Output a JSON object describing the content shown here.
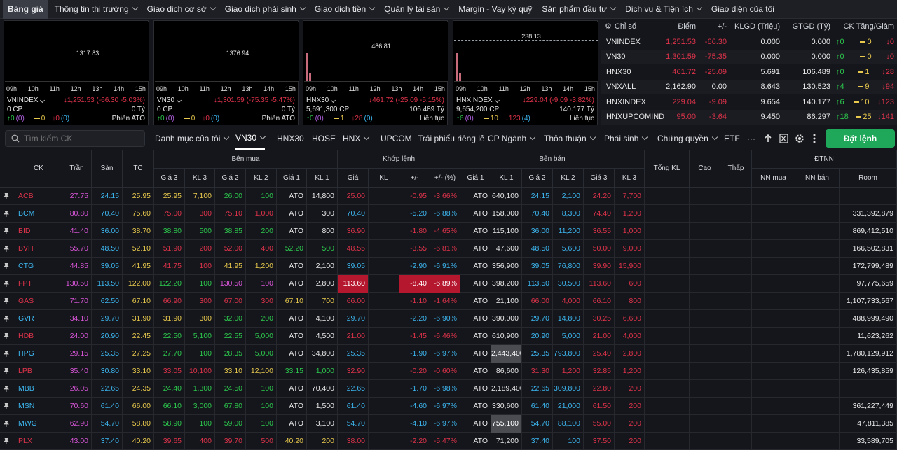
{
  "nav": [
    {
      "label": "Bảng giá",
      "chev": false,
      "active": true
    },
    {
      "label": "Thông tin thị trường",
      "chev": true
    },
    {
      "label": "Giao dịch cơ sở",
      "chev": true
    },
    {
      "label": "Giao dịch phái sinh",
      "chev": true
    },
    {
      "label": "Giao dịch tiền",
      "chev": true
    },
    {
      "label": "Quản lý tài sản",
      "chev": true
    },
    {
      "label": "Margin - Vay ký quỹ",
      "chev": false
    },
    {
      "label": "Sản phẩm đầu tư",
      "chev": true
    },
    {
      "label": "Dịch vụ & Tiện ích",
      "chev": true
    },
    {
      "label": "Giao diện của tôi",
      "chev": false
    }
  ],
  "hours": [
    "09h",
    "10h",
    "11h",
    "12h",
    "13h",
    "14h",
    "15h"
  ],
  "mini_charts": [
    {
      "ref": "1317.83",
      "name": "VNINDEX",
      "chg": "↓1,251.53 (-66.30 -5.03%)",
      "vol": "0 CP",
      "val": "0 Tỷ",
      "up": "↑0",
      "up_paren": "(0)",
      "ref_count": "0",
      "down": "↓0",
      "down_paren": "(0)",
      "session": "Phiên ATO"
    },
    {
      "ref": "1376.94",
      "name": "VN30",
      "chg": "↓1,301.59 (-75.35 -5.47%)",
      "vol": "0 CP",
      "val": "0 Tỷ",
      "up": "↑0",
      "up_paren": "(0)",
      "ref_count": "0",
      "down": "↓0",
      "down_paren": "(0)",
      "session": "Phiên ATO"
    },
    {
      "ref": "486.81",
      "name": "HNX30",
      "chg": "↓461.72 (-25.09 -5.15%)",
      "vol": "5,691,300 CP",
      "val": "106.489 Tỷ",
      "up": "↑0",
      "up_paren": "(0)",
      "ref_count": "1",
      "down": "↓28",
      "down_paren": "(0)",
      "session": "Liên tục"
    },
    {
      "ref": "238.13",
      "name": "HNXINDEX",
      "chg": "↓229.04 (-9.09 -3.82%)",
      "vol": "9,654,200 CP",
      "val": "140.177 Tỷ",
      "up": "↑6",
      "up_paren": "(0)",
      "ref_count": "10",
      "down": "↓123",
      "down_paren": "(4)",
      "session": "Liên tục"
    }
  ],
  "index_table": {
    "headers": [
      "Chỉ số",
      "Điểm",
      "+/-",
      "KLGD (Triệu)",
      "GTGD (Tỷ)",
      "CK Tăng/Giảm"
    ],
    "rows": [
      {
        "name": "VNINDEX",
        "point": "1,251.53",
        "chg": "-66.30",
        "klgd": "0.000",
        "gtgd": "0.000",
        "up": "↑0",
        "ref": "0",
        "down": "↓0",
        "color": "red"
      },
      {
        "name": "VN30",
        "point": "1,301.59",
        "chg": "-75.35",
        "klgd": "0.000",
        "gtgd": "0.000",
        "up": "↑0",
        "ref": "0",
        "down": "↓0",
        "color": "red"
      },
      {
        "name": "HNX30",
        "point": "461.72",
        "chg": "-25.09",
        "klgd": "5.691",
        "gtgd": "106.489",
        "up": "↑0",
        "ref": "1",
        "down": "↓28",
        "color": "red"
      },
      {
        "name": "VNXALL",
        "point": "2,162.90",
        "chg": "0.00",
        "klgd": "8.643",
        "gtgd": "130.523",
        "up": "↑4",
        "ref": "9",
        "down": "↓94",
        "color": "white"
      },
      {
        "name": "HNXINDEX",
        "point": "229.04",
        "chg": "-9.09",
        "klgd": "9.654",
        "gtgd": "140.177",
        "up": "↑6",
        "ref": "10",
        "down": "↓123",
        "color": "red"
      },
      {
        "name": "HNXUPCOMINDE",
        "point": "95.00",
        "chg": "-3.64",
        "klgd": "9.450",
        "gtgd": "86.297",
        "up": "↑18",
        "ref": "25",
        "down": "↓141",
        "color": "red"
      }
    ]
  },
  "toolbar": {
    "search_placeholder": "Tìm kiếm CK",
    "tabs": [
      {
        "label": "Danh mục của tôi",
        "chev": true
      },
      {
        "label": "VN30",
        "chev": true,
        "active": true
      },
      {
        "label": "HNX30",
        "chev": false
      },
      {
        "label": "HOSE",
        "chev": false
      },
      {
        "label": "HNX",
        "chev": true
      },
      {
        "label": "UPCOM",
        "chev": false
      },
      {
        "label": "Trái phiếu riêng lẻ",
        "chev": false
      },
      {
        "label": "CP Ngành",
        "chev": true
      },
      {
        "label": "Thỏa thuận",
        "chev": true
      },
      {
        "label": "Phái sinh",
        "chev": true
      },
      {
        "label": "Chứng quyền",
        "chev": true
      },
      {
        "label": "ETF",
        "chev": false
      }
    ],
    "more": "···",
    "order_button": "Đặt lệnh"
  },
  "board_headers": {
    "groups": {
      "buy": "Bên mua",
      "match": "Khớp lệnh",
      "sell": "Bên bán",
      "foreign": "ĐTNN"
    },
    "ck": "CK",
    "ceil": "Trần",
    "floor": "Sàn",
    "ref": "TC",
    "buy": [
      "Giá 3",
      "KL 3",
      "Giá 2",
      "KL 2",
      "Giá 1",
      "KL 1"
    ],
    "match": [
      "Giá",
      "KL",
      "+/-",
      "+/- (%)"
    ],
    "sell": [
      "Giá 1",
      "KL 1",
      "Giá 2",
      "KL 2",
      "Giá 3",
      "KL 3"
    ],
    "total": "Tổng KL",
    "high": "Cao",
    "low": "Thấp",
    "foreign": [
      "NN mua",
      "NN bán",
      "Room"
    ]
  },
  "rows": [
    {
      "ck": "ACB",
      "ceil": "27.75",
      "floor": "24.15",
      "ref": "25.95",
      "b3": "25.95",
      "b3c": "yellow",
      "k3": "7,100",
      "b2": "26.00",
      "b2c": "green",
      "k2": "100",
      "b1": "ATO",
      "kb1": "14,800",
      "p": "25.00",
      "pc": "red",
      "kl": "",
      "d": "-0.95",
      "dp": "-3.66%",
      "s1": "ATO",
      "ks1": "640,100",
      "s2": "24.15",
      "s2c": "cyan",
      "ks2": "2,100",
      "s3": "24.20",
      "s3c": "red",
      "ks3": "7,700",
      "room": ""
    },
    {
      "ck": "BCM",
      "ceil": "80.80",
      "floor": "70.40",
      "ref": "75.60",
      "b3": "75.00",
      "b3c": "red",
      "k3": "300",
      "b2": "75.10",
      "b2c": "red",
      "k2": "1,000",
      "b1": "ATO",
      "kb1": "300",
      "p": "70.40",
      "pc": "cyan",
      "kl": "",
      "d": "-5.20",
      "dp": "-6.88%",
      "s1": "ATO",
      "ks1": "158,000",
      "s2": "70.40",
      "s2c": "cyan",
      "ks2": "8,300",
      "s3": "74.40",
      "s3c": "red",
      "ks3": "1,200",
      "room": "331,392,879"
    },
    {
      "ck": "BID",
      "ceil": "41.40",
      "floor": "36.00",
      "ref": "38.70",
      "b3": "38.80",
      "b3c": "green",
      "k3": "500",
      "b2": "38.85",
      "b2c": "green",
      "k2": "200",
      "b1": "ATO",
      "kb1": "800",
      "p": "36.90",
      "pc": "red",
      "kl": "",
      "d": "-1.80",
      "dp": "-4.65%",
      "s1": "ATO",
      "ks1": "115,100",
      "s2": "36.00",
      "s2c": "cyan",
      "ks2": "11,200",
      "s3": "36.55",
      "s3c": "red",
      "ks3": "1,000",
      "room": "869,412,510"
    },
    {
      "ck": "BVH",
      "ceil": "55.70",
      "floor": "48.50",
      "ref": "52.10",
      "b3": "51.90",
      "b3c": "red",
      "k3": "200",
      "b2": "52.00",
      "b2c": "red",
      "k2": "400",
      "b1": "52.20",
      "b1c": "green",
      "kb1": "500",
      "p": "48.55",
      "pc": "red",
      "kl": "",
      "d": "-3.55",
      "dp": "-6.81%",
      "s1": "ATO",
      "ks1": "47,600",
      "s2": "48.50",
      "s2c": "cyan",
      "ks2": "5,600",
      "s3": "50.00",
      "s3c": "red",
      "ks3": "9,000",
      "room": "166,502,831"
    },
    {
      "ck": "CTG",
      "ceil": "44.85",
      "floor": "39.05",
      "ref": "41.95",
      "b3": "41.75",
      "b3c": "red",
      "k3": "100",
      "b2": "41.95",
      "b2c": "yellow",
      "k2": "1,200",
      "b1": "ATO",
      "kb1": "2,100",
      "p": "39.05",
      "pc": "cyan",
      "kl": "",
      "d": "-2.90",
      "dp": "-6.91%",
      "s1": "ATO",
      "ks1": "356,900",
      "s2": "39.05",
      "s2c": "cyan",
      "ks2": "76,800",
      "s3": "39.90",
      "s3c": "red",
      "ks3": "15,900",
      "room": "172,799,489"
    },
    {
      "ck": "FPT",
      "ceil": "130.50",
      "floor": "113.50",
      "ref": "122.00",
      "b3": "122.20",
      "b3c": "green",
      "k3": "100",
      "b2": "130.50",
      "b2c": "fuchsia",
      "k2": "100",
      "b1": "ATO",
      "kb1": "2,800",
      "p": "113.60",
      "pc": "red",
      "hl": true,
      "kl": "",
      "d": "-8.40",
      "dp": "-6.89%",
      "s1": "ATO",
      "ks1": "398,200",
      "s2": "113.50",
      "s2c": "cyan",
      "ks2": "30,500",
      "s3": "113.60",
      "s3c": "red",
      "ks3": "600",
      "room": "97,775,659"
    },
    {
      "ck": "GAS",
      "ceil": "71.70",
      "floor": "62.50",
      "ref": "67.10",
      "b3": "66.90",
      "b3c": "red",
      "k3": "300",
      "b2": "67.00",
      "b2c": "red",
      "k2": "300",
      "b1": "67.10",
      "b1c": "yellow",
      "kb1": "700",
      "p": "66.00",
      "pc": "red",
      "kl": "",
      "d": "-1.10",
      "dp": "-1.64%",
      "s1": "ATO",
      "ks1": "21,100",
      "s2": "66.00",
      "s2c": "red",
      "ks2": "4,000",
      "s3": "66.10",
      "s3c": "red",
      "ks3": "800",
      "room": "1,107,733,567"
    },
    {
      "ck": "GVR",
      "ceil": "34.10",
      "floor": "29.70",
      "ref": "31.90",
      "b3": "31.90",
      "b3c": "yellow",
      "k3": "300",
      "b2": "32.00",
      "b2c": "green",
      "k2": "200",
      "b1": "ATO",
      "kb1": "4,100",
      "p": "29.70",
      "pc": "cyan",
      "kl": "",
      "d": "-2.20",
      "dp": "-6.90%",
      "s1": "ATO",
      "ks1": "390,000",
      "s2": "29.70",
      "s2c": "cyan",
      "ks2": "14,800",
      "s3": "30.25",
      "s3c": "red",
      "ks3": "6,600",
      "room": "488,999,490"
    },
    {
      "ck": "HDB",
      "ceil": "24.00",
      "floor": "20.90",
      "ref": "22.45",
      "b3": "22.50",
      "b3c": "green",
      "k3": "5,100",
      "b2": "22.55",
      "b2c": "green",
      "k2": "5,000",
      "b1": "ATO",
      "kb1": "4,500",
      "p": "21.00",
      "pc": "red",
      "kl": "",
      "d": "-1.45",
      "dp": "-6.46%",
      "s1": "ATO",
      "ks1": "610,900",
      "s2": "20.90",
      "s2c": "cyan",
      "ks2": "5,000",
      "s3": "21.00",
      "s3c": "red",
      "ks3": "4,000",
      "room": "11,623,262"
    },
    {
      "ck": "HPG",
      "ceil": "29.15",
      "floor": "25.35",
      "ref": "27.25",
      "b3": "27.70",
      "b3c": "green",
      "k3": "100",
      "b2": "28.35",
      "b2c": "green",
      "k2": "5,000",
      "b1": "ATO",
      "kb1": "34,800",
      "p": "25.35",
      "pc": "cyan",
      "kl": "",
      "d": "-1.90",
      "dp": "-6.97%",
      "s1": "ATO",
      "ks1": "2,443,400",
      "ks1hl": true,
      "s2": "25.35",
      "s2c": "cyan",
      "ks2": "793,800",
      "s3": "25.40",
      "s3c": "red",
      "ks3": "2,800",
      "room": "1,780,129,912"
    },
    {
      "ck": "LPB",
      "ceil": "35.40",
      "floor": "30.80",
      "ref": "33.10",
      "b3": "33.05",
      "b3c": "red",
      "k3": "10,100",
      "b2": "33.10",
      "b2c": "yellow",
      "k2": "12,100",
      "b1": "33.15",
      "b1c": "green",
      "kb1": "1,000",
      "p": "32.90",
      "pc": "red",
      "kl": "",
      "d": "-0.20",
      "dp": "-0.60%",
      "s1": "ATO",
      "ks1": "86,600",
      "s2": "31.30",
      "s2c": "red",
      "ks2": "1,200",
      "s3": "32.85",
      "s3c": "red",
      "ks3": "1,200",
      "room": "126,435,859"
    },
    {
      "ck": "MBB",
      "ceil": "26.05",
      "floor": "22.65",
      "ref": "24.35",
      "b3": "24.40",
      "b3c": "green",
      "k3": "1,300",
      "b2": "24.50",
      "b2c": "green",
      "k2": "100",
      "b1": "ATO",
      "kb1": "70,400",
      "p": "22.65",
      "pc": "cyan",
      "kl": "",
      "d": "-1.70",
      "dp": "-6.98%",
      "s1": "ATO",
      "ks1": "2,189,400",
      "s2": "22.65",
      "s2c": "cyan",
      "ks2": "309,800",
      "s3": "22.80",
      "s3c": "red",
      "ks3": "200",
      "room": ""
    },
    {
      "ck": "MSN",
      "ceil": "70.60",
      "floor": "61.40",
      "ref": "66.00",
      "b3": "66.10",
      "b3c": "green",
      "k3": "3,000",
      "b2": "67.80",
      "b2c": "green",
      "k2": "100",
      "b1": "ATO",
      "kb1": "1,500",
      "p": "61.40",
      "pc": "cyan",
      "kl": "",
      "d": "-4.60",
      "dp": "-6.97%",
      "s1": "ATO",
      "ks1": "330,600",
      "s2": "61.40",
      "s2c": "cyan",
      "ks2": "21,000",
      "s3": "61.50",
      "s3c": "red",
      "ks3": "200",
      "room": "361,227,449"
    },
    {
      "ck": "MWG",
      "ceil": "62.90",
      "floor": "54.70",
      "ref": "58.80",
      "b3": "58.90",
      "b3c": "green",
      "k3": "100",
      "b2": "59.00",
      "b2c": "green",
      "k2": "100",
      "b1": "ATO",
      "kb1": "3,100",
      "p": "54.70",
      "pc": "cyan",
      "kl": "",
      "d": "-4.10",
      "dp": "-6.97%",
      "s1": "ATO",
      "ks1": "755,100",
      "ks1hl": true,
      "s2": "54.70",
      "s2c": "cyan",
      "ks2": "88,100",
      "s3": "55.00",
      "s3c": "red",
      "ks3": "200",
      "room": "47,811,385"
    },
    {
      "ck": "PLX",
      "ceil": "43.00",
      "floor": "37.40",
      "ref": "40.20",
      "b3": "39.65",
      "b3c": "red",
      "k3": "400",
      "b2": "39.70",
      "b2c": "red",
      "k2": "500",
      "b1": "40.20",
      "b1c": "yellow",
      "kb1": "200",
      "p": "38.00",
      "pc": "red",
      "kl": "",
      "d": "-2.20",
      "dp": "-5.47%",
      "s1": "ATO",
      "ks1": "71,200",
      "s2": "37.40",
      "s2c": "cyan",
      "ks2": "100",
      "s3": "37.50",
      "s3c": "red",
      "ks3": "200",
      "room": "33,589,705"
    }
  ]
}
